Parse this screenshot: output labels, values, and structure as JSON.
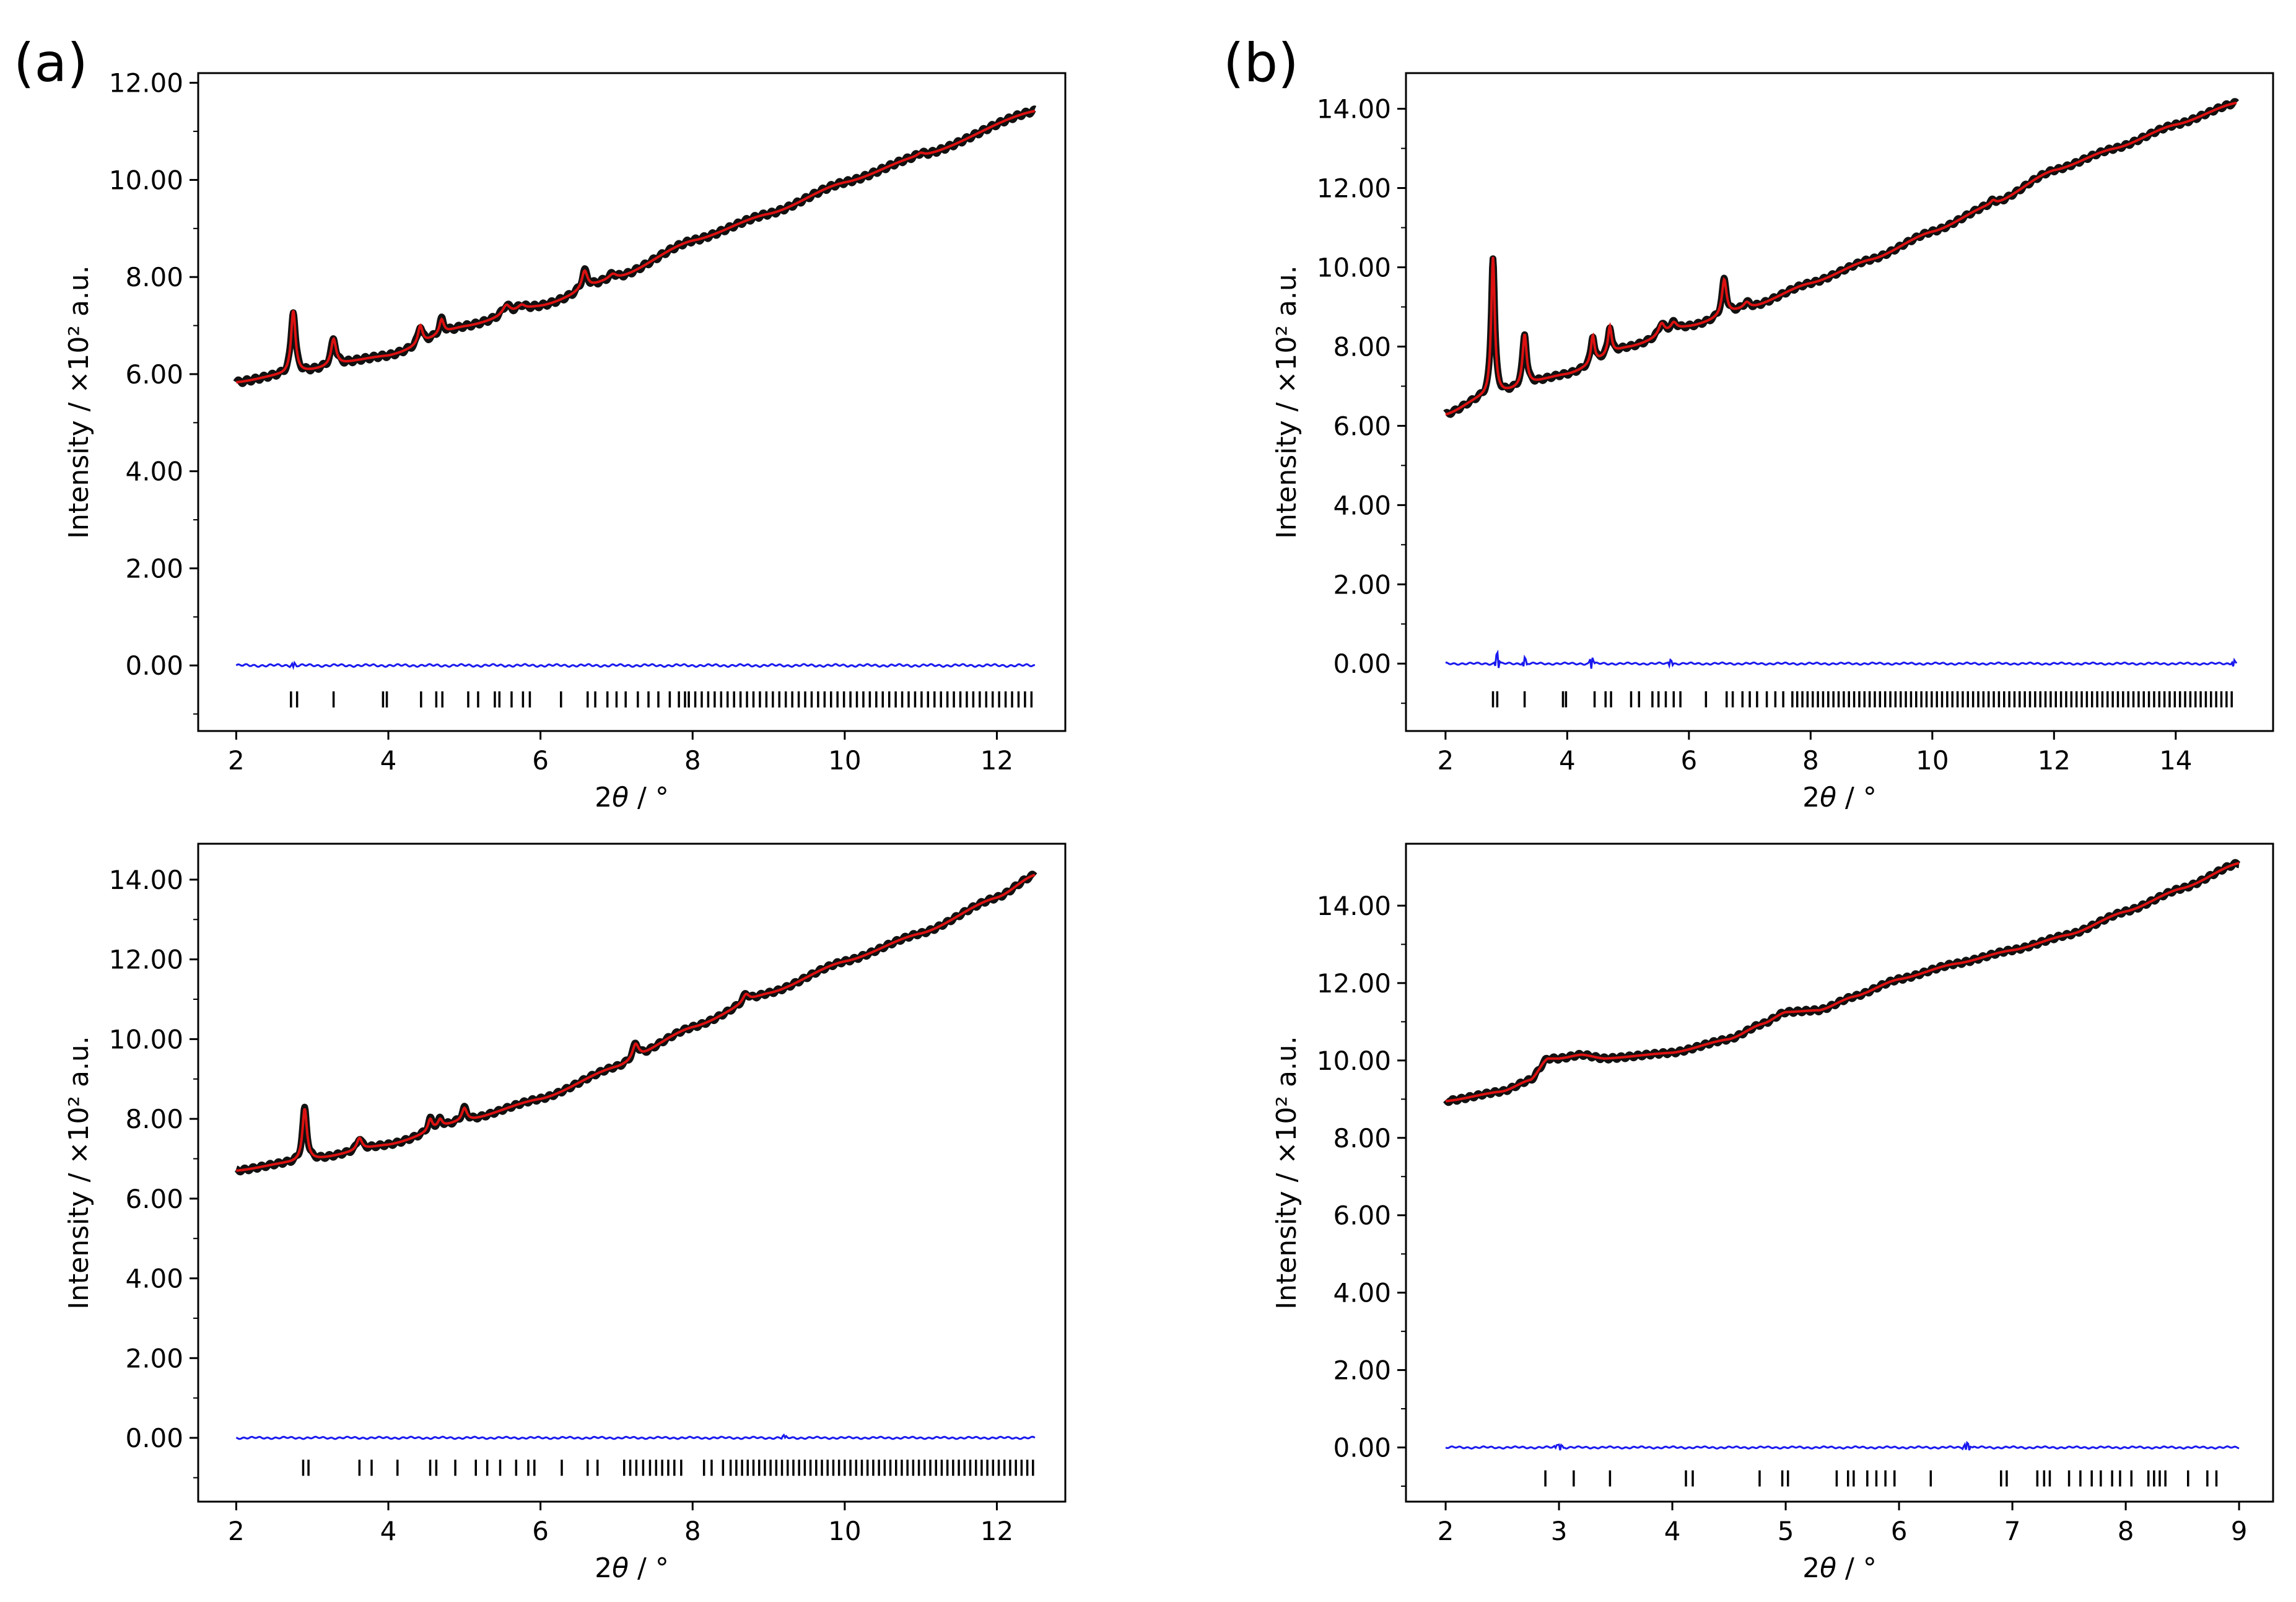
{
  "panel_labels": [
    "(a)",
    "(b)"
  ],
  "colors": {
    "observed": "#111111",
    "calculated": "#dd1111",
    "difference": "#1a1aee",
    "reflections": "#000000",
    "axis": "#000000"
  },
  "chart_data": [
    {
      "type": "line",
      "panel": "(a) top",
      "xlabel_prefix": "2",
      "xlabel_symbol": "θ",
      "xlabel_suffix": " / °",
      "ylabel": "Intensity / ×10² a.u.",
      "xlim": [
        1.5,
        12.9
      ],
      "ylim": [
        -1.35,
        12.2
      ],
      "xticks": [
        2,
        4,
        6,
        8,
        10,
        12
      ],
      "xtick_labels": [
        "2",
        "4",
        "6",
        "8",
        "10",
        "12"
      ],
      "yticks": [
        0,
        2,
        4,
        6,
        8,
        10,
        12
      ],
      "ytick_labels": [
        "0.00",
        "2.00",
        "4.00",
        "6.00",
        "8.00",
        "10.00",
        "12.00"
      ],
      "x_range": [
        2.0,
        12.5
      ],
      "baseline": [
        [
          2.0,
          5.83
        ],
        [
          2.6,
          5.98
        ],
        [
          4.0,
          6.38
        ],
        [
          5.0,
          6.98
        ],
        [
          6.0,
          7.4
        ],
        [
          7.0,
          7.98
        ],
        [
          8.0,
          8.75
        ],
        [
          9.0,
          9.3
        ],
        [
          10.0,
          9.95
        ],
        [
          11.0,
          10.5
        ],
        [
          12.5,
          11.42
        ]
      ],
      "peaks": [
        [
          2.75,
          1.3,
          0.035
        ],
        [
          3.28,
          0.55,
          0.04
        ],
        [
          4.42,
          0.38,
          0.035
        ],
        [
          4.7,
          0.3,
          0.035
        ],
        [
          5.55,
          0.2,
          0.06
        ],
        [
          5.75,
          0.1,
          0.06
        ],
        [
          6.58,
          0.38,
          0.045
        ],
        [
          6.95,
          0.1,
          0.06
        ],
        [
          11.0,
          0.06,
          0.05
        ]
      ],
      "difference_offset": 0.0,
      "difference_spikes": [
        [
          2.75,
          0.06
        ]
      ],
      "reflection_y": -0.7,
      "reflections": [
        2.72,
        2.8,
        3.28,
        3.93,
        3.98,
        4.43,
        4.63,
        4.71,
        5.05,
        5.18,
        5.4,
        5.46,
        5.62,
        5.77,
        5.86,
        6.27,
        6.62,
        6.72,
        6.88,
        7.0,
        7.12,
        7.28,
        7.42,
        7.55,
        7.7,
        7.82,
        7.9
      ],
      "reflections_dense_start": 7.95,
      "reflections_dense_step": 0.085
    },
    {
      "type": "line",
      "panel": "(b) top",
      "xlabel_prefix": "2",
      "xlabel_symbol": "θ",
      "xlabel_suffix": " / °",
      "ylabel": "Intensity / ×10² a.u.",
      "xlim": [
        1.35,
        15.6
      ],
      "ylim": [
        -1.7,
        14.9
      ],
      "xticks": [
        2,
        4,
        6,
        8,
        10,
        12,
        14
      ],
      "xtick_labels": [
        "2",
        "4",
        "6",
        "8",
        "10",
        "12",
        "14"
      ],
      "yticks": [
        0,
        2,
        4,
        6,
        8,
        10,
        12,
        14
      ],
      "ytick_labels": [
        "0.00",
        "2.00",
        "4.00",
        "6.00",
        "8.00",
        "10.00",
        "12.00",
        "14.00"
      ],
      "x_range": [
        2.0,
        15.0
      ],
      "baseline": [
        [
          2.0,
          6.28
        ],
        [
          2.6,
          6.7
        ],
        [
          4.0,
          7.3
        ],
        [
          5.0,
          7.98
        ],
        [
          6.0,
          8.5
        ],
        [
          7.0,
          8.98
        ],
        [
          8.0,
          9.6
        ],
        [
          9.0,
          10.2
        ],
        [
          10.0,
          10.9
        ],
        [
          11.0,
          11.6
        ],
        [
          12.0,
          12.45
        ],
        [
          13.0,
          13.0
        ],
        [
          14.0,
          13.6
        ],
        [
          15.0,
          14.15
        ]
      ],
      "peaks": [
        [
          2.78,
          3.5,
          0.035
        ],
        [
          3.3,
          1.3,
          0.04
        ],
        [
          4.42,
          0.7,
          0.035
        ],
        [
          4.7,
          0.7,
          0.035
        ],
        [
          5.55,
          0.3,
          0.06
        ],
        [
          5.75,
          0.2,
          0.06
        ],
        [
          6.58,
          0.9,
          0.045
        ],
        [
          6.95,
          0.15,
          0.06
        ],
        [
          11.0,
          0.1,
          0.05
        ]
      ],
      "difference_offset": 0.0,
      "difference_spikes": [
        [
          2.85,
          0.3
        ],
        [
          3.3,
          0.15
        ],
        [
          4.4,
          0.2
        ],
        [
          5.7,
          0.12
        ],
        [
          14.95,
          0.1
        ]
      ],
      "reflection_y": -0.9,
      "reflections": [
        2.78,
        2.85,
        3.3,
        3.93,
        3.98,
        4.45,
        4.63,
        4.72,
        5.05,
        5.18,
        5.4,
        5.5,
        5.62,
        5.75,
        5.86,
        6.28,
        6.62,
        6.72,
        6.88,
        7.0,
        7.12,
        7.28,
        7.42,
        7.55,
        7.7
      ],
      "reflections_dense_start": 7.78,
      "reflections_dense_step": 0.085
    },
    {
      "type": "line",
      "panel": "(a) bottom",
      "xlabel_prefix": "2",
      "xlabel_symbol": "θ",
      "xlabel_suffix": " / °",
      "ylabel": "Intensity / ×10² a.u.",
      "xlim": [
        1.5,
        12.9
      ],
      "ylim": [
        -1.6,
        14.9
      ],
      "xticks": [
        2,
        4,
        6,
        8,
        10,
        12
      ],
      "xtick_labels": [
        "2",
        "4",
        "6",
        "8",
        "10",
        "12"
      ],
      "yticks": [
        0,
        2,
        4,
        6,
        8,
        10,
        12,
        14
      ],
      "ytick_labels": [
        "0.00",
        "2.00",
        "4.00",
        "6.00",
        "8.00",
        "10.00",
        "12.00",
        "14.00"
      ],
      "x_range": [
        2.0,
        12.5
      ],
      "baseline": [
        [
          2.0,
          6.7
        ],
        [
          2.7,
          6.9
        ],
        [
          3.0,
          6.98
        ],
        [
          4.0,
          7.35
        ],
        [
          5.0,
          7.95
        ],
        [
          6.0,
          8.5
        ],
        [
          7.0,
          9.3
        ],
        [
          8.0,
          10.3
        ],
        [
          9.0,
          11.15
        ],
        [
          10.0,
          11.95
        ],
        [
          11.0,
          12.65
        ],
        [
          12.0,
          13.55
        ],
        [
          12.5,
          14.12
        ]
      ],
      "peaks": [
        [
          2.9,
          1.3,
          0.035
        ],
        [
          3.62,
          0.3,
          0.04
        ],
        [
          4.55,
          0.3,
          0.035
        ],
        [
          4.68,
          0.2,
          0.035
        ],
        [
          5.0,
          0.32,
          0.04
        ],
        [
          7.25,
          0.38,
          0.05
        ],
        [
          8.7,
          0.2,
          0.05
        ]
      ],
      "difference_offset": 0.0,
      "difference_spikes": [
        [
          9.2,
          0.05
        ]
      ],
      "reflection_y": -0.75,
      "reflections": [
        2.88,
        2.95,
        3.62,
        3.78,
        4.12,
        4.55,
        4.63,
        4.88,
        5.15,
        5.3,
        5.47,
        5.68,
        5.84,
        5.92,
        6.28,
        6.62,
        6.75,
        7.1,
        7.18,
        7.26,
        7.35,
        7.44,
        7.52,
        7.6,
        7.68,
        7.76,
        7.85,
        8.15,
        8.25,
        8.4
      ],
      "reflections_dense_start": 8.5,
      "reflections_dense_step": 0.075
    },
    {
      "type": "line",
      "panel": "(b) bottom",
      "xlabel_prefix": "2",
      "xlabel_symbol": "θ",
      "xlabel_suffix": " / °",
      "ylabel": "Intensity / ×10² a.u.",
      "xlim": [
        1.65,
        9.3
      ],
      "ylim": [
        -1.4,
        15.6
      ],
      "xticks": [
        2,
        3,
        4,
        5,
        6,
        7,
        8,
        9
      ],
      "xtick_labels": [
        "2",
        "3",
        "4",
        "5",
        "6",
        "7",
        "8",
        "9"
      ],
      "yticks": [
        0,
        2,
        4,
        6,
        8,
        10,
        12,
        14
      ],
      "ytick_labels": [
        "0.00",
        "2.00",
        "4.00",
        "6.00",
        "8.00",
        "10.00",
        "12.00",
        "14.00"
      ],
      "x_range": [
        2.0,
        9.0
      ],
      "baseline": [
        [
          2.0,
          8.95
        ],
        [
          2.5,
          9.2
        ],
        [
          2.75,
          9.5
        ],
        [
          2.9,
          10.05
        ],
        [
          3.0,
          10.05
        ],
        [
          3.2,
          10.15
        ],
        [
          3.4,
          10.05
        ],
        [
          4.0,
          10.2
        ],
        [
          4.5,
          10.55
        ],
        [
          4.8,
          10.95
        ],
        [
          5.0,
          11.25
        ],
        [
          5.3,
          11.3
        ],
        [
          5.6,
          11.65
        ],
        [
          6.0,
          12.1
        ],
        [
          6.5,
          12.5
        ],
        [
          7.0,
          12.85
        ],
        [
          7.5,
          13.25
        ],
        [
          8.0,
          13.85
        ],
        [
          8.5,
          14.45
        ],
        [
          9.0,
          15.1
        ]
      ],
      "peaks": [],
      "difference_offset": 0.0,
      "difference_spikes": [
        [
          3.0,
          0.1
        ],
        [
          6.6,
          0.12
        ]
      ],
      "reflection_y": -0.8,
      "reflections": [
        2.88,
        3.13,
        3.45,
        4.12,
        4.18,
        4.77,
        4.97,
        5.02,
        5.45,
        5.55,
        5.6,
        5.72,
        5.8,
        5.88,
        5.96,
        6.28,
        6.9,
        6.95,
        7.22,
        7.28,
        7.33,
        7.5,
        7.6,
        7.7,
        7.78,
        7.88,
        7.95,
        8.05,
        8.2,
        8.25,
        8.3,
        8.35,
        8.55,
        8.72,
        8.8
      ]
    }
  ]
}
